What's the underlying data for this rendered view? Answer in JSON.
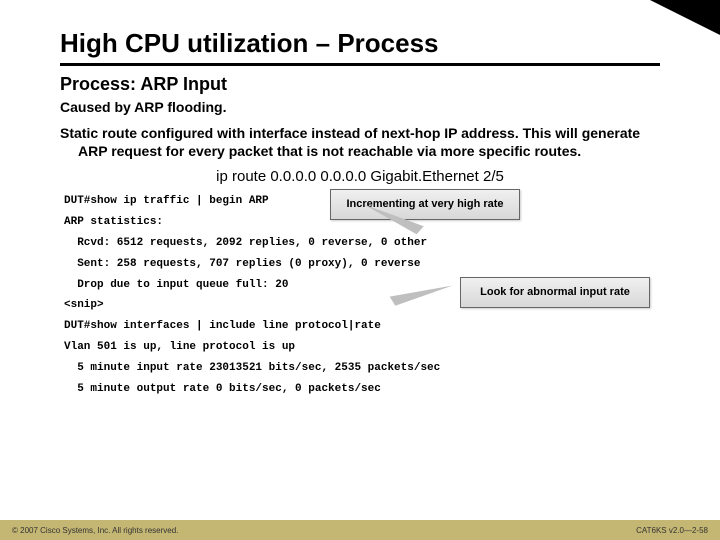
{
  "title": "High CPU utilization – Process",
  "subtitle": "Process: ARP Input",
  "caused": "Caused by ARP flooding.",
  "paragraph": "Static route configured with interface instead of next-hop IP address. This will generate ARP request for every packet that is not reachable via more specific routes.",
  "route_cmd": "ip route 0.0.0.0 0.0.0.0 Gigabit.Ethernet 2/5",
  "terminal": {
    "l1": "DUT#show ip traffic | begin ARP",
    "l2": "ARP statistics:",
    "l3": "  Rcvd: 6512 requests, 2092 replies, 0 reverse, 0 other",
    "l4": "  Sent: 258 requests, 707 replies (0 proxy), 0 reverse",
    "l5": "  Drop due to input queue full: 20",
    "l6": "<snip>",
    "l7": "DUT#show interfaces | include line protocol|rate",
    "l8": "Vlan 501 is up, line protocol is up",
    "l9": "  5 minute input rate 23013521 bits/sec, 2535 packets/sec",
    "l10": "  5 minute output rate 0 bits/sec, 0 packets/sec"
  },
  "callout1": "Incrementing at very high rate",
  "callout2": "Look for abnormal input rate",
  "footer_left": "© 2007 Cisco Systems, Inc. All rights reserved.",
  "footer_right": "CAT6KS v2.0—2-58",
  "colors": {
    "accent": "#000000",
    "footer_bg": "#c4b673",
    "callout_border": "#666666"
  }
}
